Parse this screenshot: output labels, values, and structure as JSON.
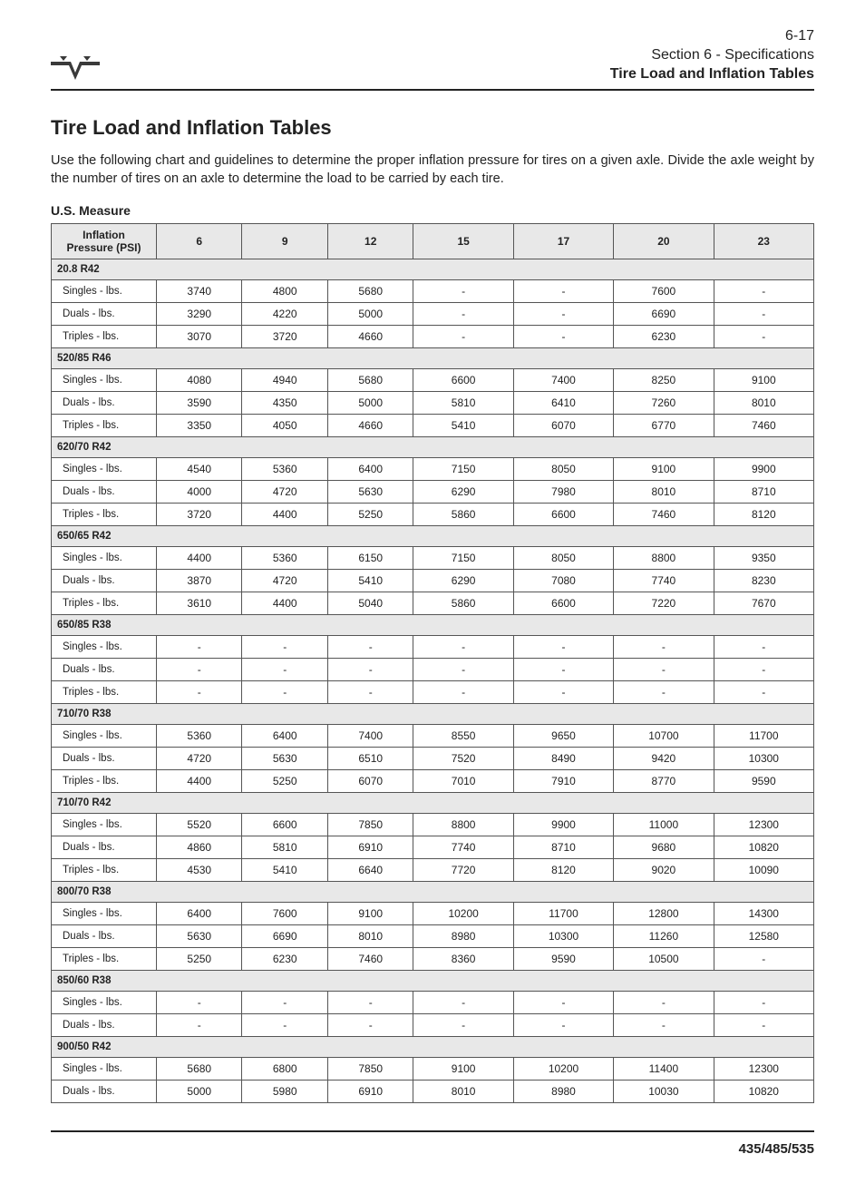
{
  "header": {
    "page_num": "6-17",
    "section": "Section 6 - Specifications",
    "subtitle": "Tire Load and Inflation Tables"
  },
  "title": "Tire Load and Inflation Tables",
  "intro": "Use the following chart and guidelines to determine the proper inflation pressure for tires on a given axle. Divide the axle weight by the number of tires on an axle to determine the load to be carried by each tire.",
  "measure_label": "U.S. Measure",
  "col_header_label": "Inflation Pressure (PSI)",
  "psi_columns": [
    "6",
    "9",
    "12",
    "15",
    "17",
    "20",
    "23"
  ],
  "row_labels": {
    "singles": "Singles - lbs.",
    "duals": "Duals - lbs.",
    "triples": "Triples - lbs."
  },
  "groups": [
    {
      "name": "20.8 R42",
      "rows": [
        [
          "singles",
          "3740",
          "4800",
          "5680",
          "-",
          "-",
          "7600",
          "-"
        ],
        [
          "duals",
          "3290",
          "4220",
          "5000",
          "-",
          "-",
          "6690",
          "-"
        ],
        [
          "triples",
          "3070",
          "3720",
          "4660",
          "-",
          "-",
          "6230",
          "-"
        ]
      ]
    },
    {
      "name": "520/85 R46",
      "rows": [
        [
          "singles",
          "4080",
          "4940",
          "5680",
          "6600",
          "7400",
          "8250",
          "9100"
        ],
        [
          "duals",
          "3590",
          "4350",
          "5000",
          "5810",
          "6410",
          "7260",
          "8010"
        ],
        [
          "triples",
          "3350",
          "4050",
          "4660",
          "5410",
          "6070",
          "6770",
          "7460"
        ]
      ]
    },
    {
      "name": "620/70 R42",
      "rows": [
        [
          "singles",
          "4540",
          "5360",
          "6400",
          "7150",
          "8050",
          "9100",
          "9900"
        ],
        [
          "duals",
          "4000",
          "4720",
          "5630",
          "6290",
          "7980",
          "8010",
          "8710"
        ],
        [
          "triples",
          "3720",
          "4400",
          "5250",
          "5860",
          "6600",
          "7460",
          "8120"
        ]
      ]
    },
    {
      "name": "650/65 R42",
      "rows": [
        [
          "singles",
          "4400",
          "5360",
          "6150",
          "7150",
          "8050",
          "8800",
          "9350"
        ],
        [
          "duals",
          "3870",
          "4720",
          "5410",
          "6290",
          "7080",
          "7740",
          "8230"
        ],
        [
          "triples",
          "3610",
          "4400",
          "5040",
          "5860",
          "6600",
          "7220",
          "7670"
        ]
      ]
    },
    {
      "name": "650/85 R38",
      "rows": [
        [
          "singles",
          "-",
          "-",
          "-",
          "-",
          "-",
          "-",
          "-"
        ],
        [
          "duals",
          "-",
          "-",
          "-",
          "-",
          "-",
          "-",
          "-"
        ],
        [
          "triples",
          "-",
          "-",
          "-",
          "-",
          "-",
          "-",
          "-"
        ]
      ]
    },
    {
      "name": "710/70 R38",
      "rows": [
        [
          "singles",
          "5360",
          "6400",
          "7400",
          "8550",
          "9650",
          "10700",
          "11700"
        ],
        [
          "duals",
          "4720",
          "5630",
          "6510",
          "7520",
          "8490",
          "9420",
          "10300"
        ],
        [
          "triples",
          "4400",
          "5250",
          "6070",
          "7010",
          "7910",
          "8770",
          "9590"
        ]
      ]
    },
    {
      "name": "710/70 R42",
      "rows": [
        [
          "singles",
          "5520",
          "6600",
          "7850",
          "8800",
          "9900",
          "11000",
          "12300"
        ],
        [
          "duals",
          "4860",
          "5810",
          "6910",
          "7740",
          "8710",
          "9680",
          "10820"
        ],
        [
          "triples",
          "4530",
          "5410",
          "6640",
          "7720",
          "8120",
          "9020",
          "10090"
        ]
      ]
    },
    {
      "name": "800/70 R38",
      "rows": [
        [
          "singles",
          "6400",
          "7600",
          "9100",
          "10200",
          "11700",
          "12800",
          "14300"
        ],
        [
          "duals",
          "5630",
          "6690",
          "8010",
          "8980",
          "10300",
          "11260",
          "12580"
        ],
        [
          "triples",
          "5250",
          "6230",
          "7460",
          "8360",
          "9590",
          "10500",
          "-"
        ]
      ]
    },
    {
      "name": "850/60 R38",
      "rows": [
        [
          "singles",
          "-",
          "-",
          "-",
          "-",
          "-",
          "-",
          "-"
        ],
        [
          "duals",
          "-",
          "-",
          "-",
          "-",
          "-",
          "-",
          "-"
        ]
      ]
    },
    {
      "name": "900/50 R42",
      "rows": [
        [
          "singles",
          "5680",
          "6800",
          "7850",
          "9100",
          "10200",
          "11400",
          "12300"
        ],
        [
          "duals",
          "5000",
          "5980",
          "6910",
          "8010",
          "8980",
          "10030",
          "10820"
        ]
      ]
    }
  ],
  "footer": "435/485/535",
  "colors": {
    "text": "#222222",
    "border": "#555555",
    "shade": "#e8e8e8",
    "background": "#ffffff"
  }
}
